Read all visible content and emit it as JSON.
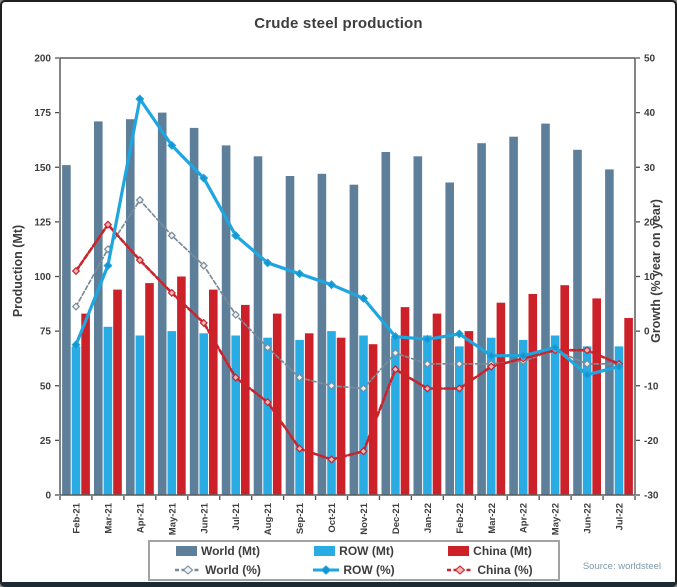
{
  "header": {
    "title": "Crude steel production"
  },
  "footer": {
    "source": "Source: worldsteel"
  },
  "chart_data": {
    "type": "combo-bar-line",
    "title": "Crude steel production",
    "categories": [
      "Feb-21",
      "Mar-21",
      "Apr-21",
      "May-21",
      "Jun-21",
      "Jul-21",
      "Aug-21",
      "Sep-21",
      "Oct-21",
      "Nov-21",
      "Dec-21",
      "Jan-22",
      "Feb-22",
      "Mar-22",
      "Apr-22",
      "May-22",
      "Jun-22",
      "Jul-22"
    ],
    "left_axis": {
      "label": "Production (Mt)",
      "min": 0,
      "max": 200,
      "ticks": [
        0,
        25,
        50,
        75,
        100,
        125,
        150,
        175,
        200
      ]
    },
    "right_axis": {
      "label": "Growth (% year on year)",
      "min": -30,
      "max": 50,
      "ticks": [
        -30,
        -20,
        -10,
        0,
        10,
        20,
        30,
        40,
        50
      ]
    },
    "grid": false,
    "legend_position": "bottom",
    "bar_series": [
      {
        "name": "World (Mt)",
        "axis": "left",
        "color": "#5e7f9a",
        "values": [
          151,
          171,
          172,
          175,
          168,
          160,
          155,
          146,
          147,
          142,
          157,
          155,
          143,
          161,
          164,
          170,
          158,
          149
        ]
      },
      {
        "name": "ROW (Mt)",
        "axis": "left",
        "color": "#29abe4",
        "values": [
          68,
          77,
          73,
          75,
          74,
          73,
          72,
          71,
          75,
          73,
          72,
          73,
          68,
          72,
          71,
          73,
          68,
          68
        ]
      },
      {
        "name": "China (Mt)",
        "axis": "left",
        "color": "#cd2129",
        "values": [
          83,
          94,
          97,
          100,
          94,
          87,
          83,
          74,
          72,
          69,
          86,
          83,
          75,
          88,
          92,
          96,
          90,
          81
        ]
      }
    ],
    "line_series": [
      {
        "name": "World (%)",
        "axis": "right",
        "color": "#7b8b99",
        "style": "dashed",
        "marker": "open-diamond",
        "marker_fill": "#eef2f5",
        "values": [
          4.5,
          15,
          24,
          17.5,
          12,
          3,
          -3,
          -8.5,
          -10,
          -10.5,
          -4,
          -6,
          -6,
          -6,
          -5.5,
          -3.5,
          -6,
          -6
        ]
      },
      {
        "name": "ROW (%)",
        "axis": "right",
        "color": "#1ea6e0",
        "style": "solid",
        "marker": "solid-diamond",
        "marker_fill": "#1795cf",
        "values": [
          -2.5,
          12,
          42.5,
          34,
          28,
          17.5,
          12.5,
          10.5,
          8.5,
          6,
          -1,
          -1.5,
          -0.5,
          -4.5,
          -4.5,
          -3,
          -8,
          -6.5
        ]
      },
      {
        "name": "China (%)",
        "axis": "right",
        "color": "#c9242b",
        "style": "dashed",
        "marker": "open-diamond",
        "marker_fill": "#eab7ba",
        "values": [
          11,
          19.5,
          13,
          7,
          1.5,
          -8.5,
          -13,
          -21.5,
          -23.5,
          -22,
          -7,
          -10.5,
          -10.5,
          -6.5,
          -5,
          -3.5,
          -3.5,
          -6
        ]
      }
    ],
    "legend": {
      "world_mt": "World (Mt)",
      "row_mt": "ROW (Mt)",
      "china_mt": "China (Mt)",
      "world_pct": "World (%)",
      "row_pct": "ROW (%)",
      "china_pct": "China (%)"
    }
  }
}
